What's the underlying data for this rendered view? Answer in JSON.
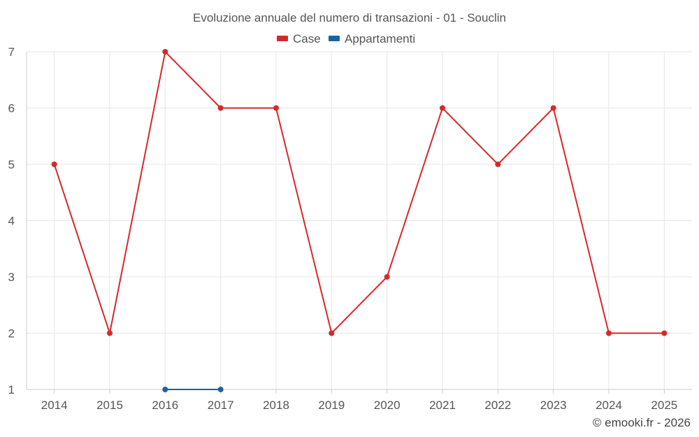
{
  "chart_data": {
    "type": "line",
    "title": "Evoluzione annuale del numero di transazioni - 01 - Souclin",
    "categories": [
      "2014",
      "2015",
      "2016",
      "2017",
      "2018",
      "2019",
      "2020",
      "2021",
      "2022",
      "2023",
      "2024",
      "2025"
    ],
    "ylim": [
      1,
      7
    ],
    "yticks": [
      1,
      2,
      3,
      4,
      5,
      6,
      7
    ],
    "grid": true,
    "legend_position": "top-center",
    "series": [
      {
        "name": "Case",
        "color": "#d42a2a",
        "values": [
          5,
          2,
          7,
          6,
          6,
          2,
          3,
          6,
          5,
          6,
          2,
          2
        ]
      },
      {
        "name": "Appartamenti",
        "color": "#1565a6",
        "values": [
          null,
          null,
          1,
          1,
          null,
          null,
          null,
          null,
          null,
          null,
          null,
          null
        ]
      }
    ]
  },
  "credit": "© emooki.fr - 2026"
}
